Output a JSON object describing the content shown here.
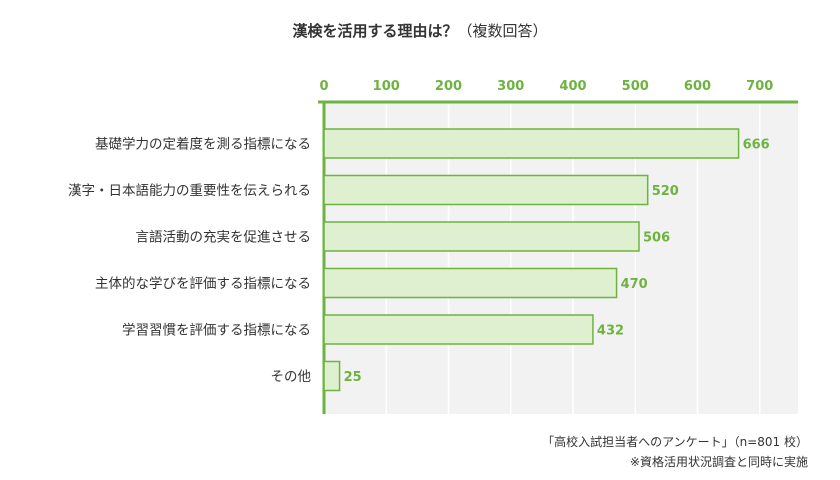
{
  "colors": {
    "accent": "#6db33f",
    "bar_fill": "#dff0d0",
    "bar_stroke": "#6db33f",
    "plot_bg": "#f2f2f2",
    "grid": "#ffffff",
    "text": "#333333"
  },
  "note": {
    "source": "「高校入試担当者へのアンケート」（n=801 校）",
    "remark": "※資格活用状況調査と同時に実施"
  },
  "chart_data": {
    "type": "bar",
    "orientation": "horizontal",
    "title": "漢検を活用する理由は？",
    "subtitle": "（複数回答）",
    "categories": [
      "基礎学力の定着度を測る指標になる",
      "漢字・日本語能力の重要性を伝えられる",
      "言語活動の充実を促進させる",
      "主体的な学びを評価する指標になる",
      "学習習慣を評価する指標になる",
      "その他"
    ],
    "values": [
      666,
      520,
      506,
      470,
      432,
      25
    ],
    "xlim": [
      0,
      760
    ],
    "ticks": [
      "0",
      "100",
      "200",
      "300",
      "400",
      "500",
      "600",
      "700"
    ],
    "tick_values": [
      0,
      100,
      200,
      300,
      400,
      500,
      600,
      700
    ],
    "grid": true,
    "axis_position": "top",
    "legend": "none"
  }
}
